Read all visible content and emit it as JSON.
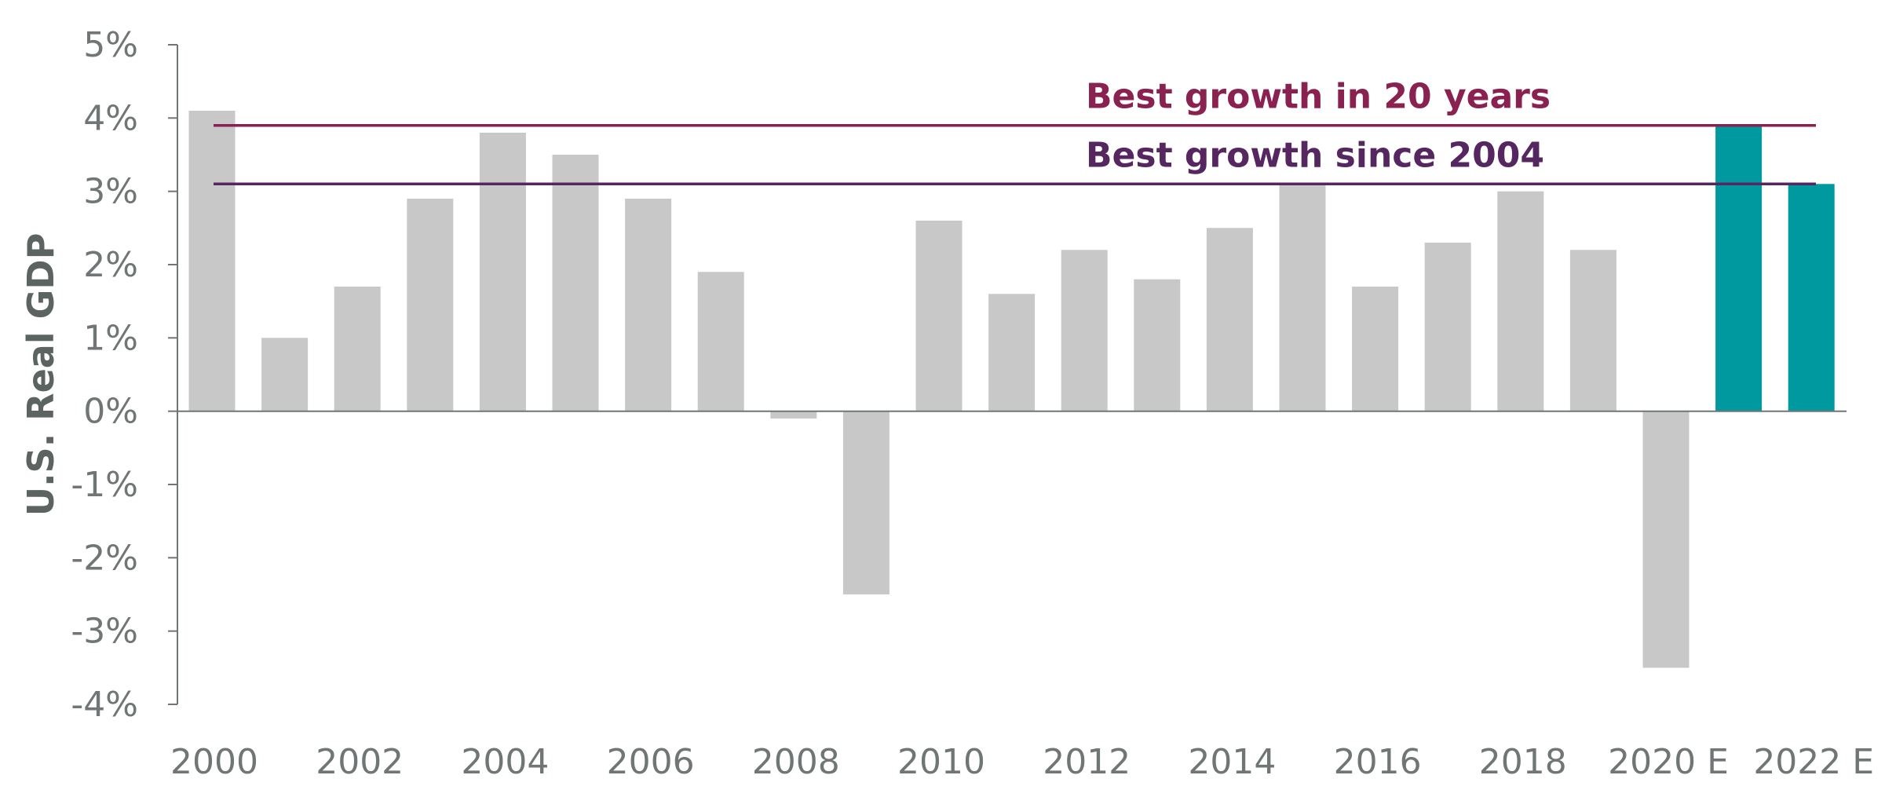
{
  "chart_data": {
    "type": "bar",
    "ylabel": "U.S. Real GDP",
    "xlabel": "",
    "title": "",
    "ylim": [
      -4,
      5
    ],
    "y_ticks": [
      "5%",
      "4%",
      "3%",
      "2%",
      "1%",
      "0%",
      "-1%",
      "-2%",
      "-3%",
      "-4%"
    ],
    "x_tick_labels": [
      "2000",
      "2002",
      "2004",
      "2006",
      "2008",
      "2010",
      "2012",
      "2014",
      "2016",
      "2018",
      "2020 E",
      "2022 E"
    ],
    "grid": false,
    "categories": [
      "2000",
      "2001",
      "2002",
      "2003",
      "2004",
      "2005",
      "2006",
      "2007",
      "2008",
      "2009",
      "2010",
      "2011",
      "2012",
      "2013",
      "2014",
      "2015",
      "2016",
      "2017",
      "2018",
      "2019",
      "2020",
      "2021",
      "2022"
    ],
    "values": [
      4.1,
      1.0,
      1.7,
      2.9,
      3.8,
      3.5,
      2.9,
      1.9,
      -0.1,
      -2.5,
      2.6,
      1.6,
      2.2,
      1.8,
      2.5,
      3.1,
      1.7,
      2.3,
      3.0,
      2.2,
      -3.5,
      3.9,
      3.1
    ],
    "highlight_categories": [
      "2021",
      "2022"
    ],
    "colors": {
      "bar": "#c8c8c8",
      "highlight": "#00999f",
      "axis": "#6f7675",
      "line_20yr": "#8a2251",
      "line_2004": "#562660",
      "label_20yr": "#8a2251",
      "label_2004": "#562660"
    },
    "reference_lines": [
      {
        "label": "Best growth in 20 years",
        "value": 3.9,
        "color_key": "line_20yr"
      },
      {
        "label": "Best growth since 2004",
        "value": 3.1,
        "color_key": "line_2004"
      }
    ]
  }
}
